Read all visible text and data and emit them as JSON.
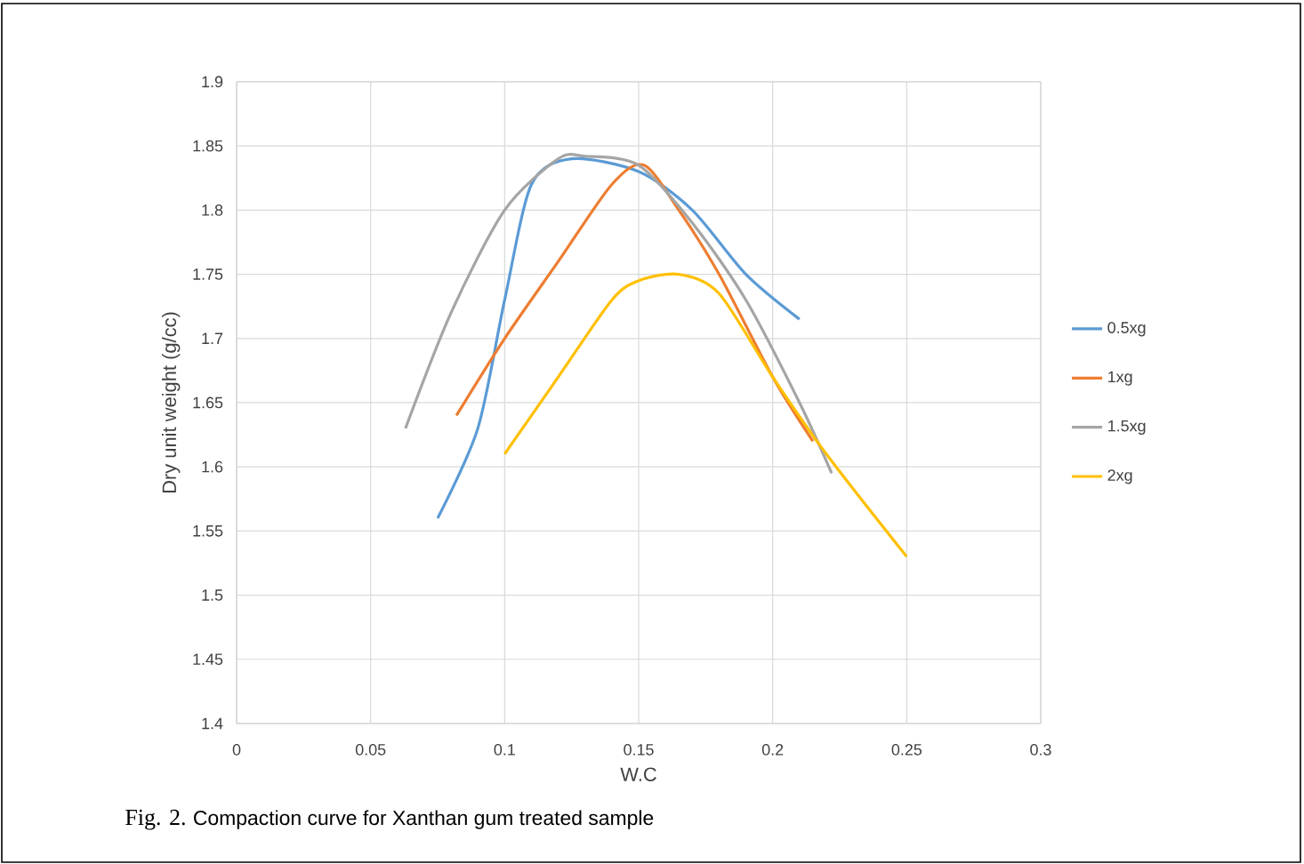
{
  "chart_data": {
    "type": "line",
    "xlabel": "W.C",
    "ylabel": "Dry unit weight (g/cc)",
    "xlim": [
      0,
      0.3
    ],
    "xticks": [
      0,
      0.05,
      0.1,
      0.15,
      0.2,
      0.25,
      0.3
    ],
    "ylim": [
      1.4,
      1.9
    ],
    "yticks": [
      1.4,
      1.45,
      1.5,
      1.55,
      1.6,
      1.65,
      1.7,
      1.75,
      1.8,
      1.85,
      1.9
    ],
    "grid": true,
    "legend": "right",
    "marker": "none",
    "line_style": "solid",
    "series": [
      {
        "name": "0.5xg",
        "color": "#5b9bd5",
        "x": [
          0.075,
          0.09,
          0.1,
          0.11,
          0.125,
          0.15,
          0.17,
          0.19,
          0.21
        ],
        "values": [
          1.56,
          1.63,
          1.73,
          1.82,
          1.84,
          1.83,
          1.8,
          1.75,
          1.715
        ]
      },
      {
        "name": "1xg",
        "color": "#ed7d31",
        "x": [
          0.082,
          0.1,
          0.12,
          0.14,
          0.152,
          0.165,
          0.18,
          0.2,
          0.215
        ],
        "values": [
          1.64,
          1.7,
          1.76,
          1.82,
          1.835,
          1.8,
          1.75,
          1.67,
          1.62
        ]
      },
      {
        "name": "1.5xg",
        "color": "#a5a5a5",
        "x": [
          0.063,
          0.08,
          0.1,
          0.12,
          0.13,
          0.15,
          0.17,
          0.19,
          0.21,
          0.222
        ],
        "values": [
          1.63,
          1.72,
          1.8,
          1.84,
          1.842,
          1.835,
          1.79,
          1.73,
          1.65,
          1.595
        ]
      },
      {
        "name": "2xg",
        "color": "#ffc000",
        "x": [
          0.1,
          0.12,
          0.14,
          0.15,
          0.165,
          0.18,
          0.2,
          0.22,
          0.25
        ],
        "values": [
          1.61,
          1.67,
          1.73,
          1.745,
          1.75,
          1.735,
          1.67,
          1.61,
          1.53
        ]
      }
    ],
    "annotations": [
      "Fig. 2.",
      "Compaction curve for Xanthan gum treated sample"
    ]
  }
}
